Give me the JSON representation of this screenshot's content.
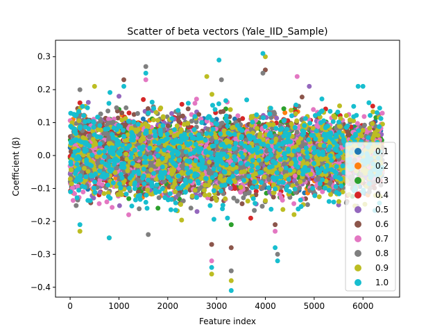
{
  "chart_data": {
    "type": "scatter",
    "title": "Scatter of beta vectors (Yale_IID_Sample)",
    "xlabel": "Feature index",
    "ylabel": "Coefficient (β)",
    "xlim": [
      -300,
      6750
    ],
    "ylim": [
      -0.43,
      0.35
    ],
    "x_ticks": [
      0,
      1000,
      2000,
      3000,
      4000,
      5000,
      6000
    ],
    "y_ticks": [
      -0.4,
      -0.3,
      -0.2,
      -0.1,
      0.0,
      0.1,
      0.2,
      0.3
    ],
    "n_features": 6400,
    "grid": false,
    "legend_position": "right",
    "series": [
      {
        "name": "0.1",
        "color": "#1f77b4",
        "spread": 0.045,
        "points": [
          [
            400,
            0.1
          ],
          [
            1500,
            -0.12
          ],
          [
            3000,
            0.11
          ],
          [
            5200,
            -0.1
          ]
        ]
      },
      {
        "name": "0.2",
        "color": "#ff7f0e",
        "spread": 0.048,
        "points": [
          [
            300,
            0.12
          ],
          [
            2100,
            -0.13
          ],
          [
            4400,
            0.13
          ],
          [
            6100,
            -0.12
          ]
        ]
      },
      {
        "name": "0.3",
        "color": "#2ca02c",
        "spread": 0.05,
        "points": [
          [
            1000,
            0.14
          ],
          [
            1800,
            -0.16
          ],
          [
            3300,
            -0.21
          ],
          [
            4600,
            0.14
          ]
        ]
      },
      {
        "name": "0.4",
        "color": "#d62728",
        "spread": 0.052,
        "points": [
          [
            200,
            0.16
          ],
          [
            1500,
            0.17
          ],
          [
            3700,
            -0.19
          ],
          [
            6200,
            0.15
          ]
        ]
      },
      {
        "name": "0.5",
        "color": "#9467bd",
        "spread": 0.055,
        "points": [
          [
            1000,
            0.18
          ],
          [
            4900,
            0.21
          ],
          [
            2600,
            -0.17
          ],
          [
            5500,
            -0.15
          ]
        ]
      },
      {
        "name": "0.6",
        "color": "#8c564b",
        "spread": 0.058,
        "points": [
          [
            1100,
            0.23
          ],
          [
            2900,
            -0.27
          ],
          [
            3300,
            -0.28
          ],
          [
            4200,
            -0.21
          ],
          [
            4000,
            0.26
          ]
        ]
      },
      {
        "name": "0.7",
        "color": "#e377c2",
        "spread": 0.06,
        "points": [
          [
            1550,
            0.23
          ],
          [
            4650,
            0.24
          ],
          [
            2900,
            -0.32
          ],
          [
            4200,
            -0.23
          ],
          [
            1200,
            -0.18
          ]
        ]
      },
      {
        "name": "0.8",
        "color": "#7f7f7f",
        "spread": 0.064,
        "points": [
          [
            1550,
            0.27
          ],
          [
            3100,
            0.23
          ],
          [
            3950,
            0.25
          ],
          [
            3300,
            -0.35
          ],
          [
            1600,
            -0.24
          ],
          [
            200,
            0.2
          ],
          [
            4250,
            -0.3
          ]
        ]
      },
      {
        "name": "0.9",
        "color": "#bcbd22",
        "spread": 0.068,
        "points": [
          [
            500,
            0.21
          ],
          [
            2800,
            0.24
          ],
          [
            4000,
            0.3
          ],
          [
            3300,
            -0.38
          ],
          [
            2900,
            -0.36
          ],
          [
            200,
            -0.23
          ],
          [
            800,
            -0.25
          ]
        ]
      },
      {
        "name": "1.0",
        "color": "#17becf",
        "spread": 0.072,
        "points": [
          [
            3950,
            0.31
          ],
          [
            3050,
            0.29
          ],
          [
            1550,
            0.25
          ],
          [
            3300,
            -0.41
          ],
          [
            2900,
            -0.34
          ],
          [
            4250,
            -0.32
          ],
          [
            4200,
            -0.28
          ],
          [
            800,
            -0.25
          ],
          [
            200,
            -0.21
          ],
          [
            5900,
            0.21
          ],
          [
            6000,
            0.21
          ],
          [
            1100,
            0.21
          ]
        ]
      }
    ]
  }
}
